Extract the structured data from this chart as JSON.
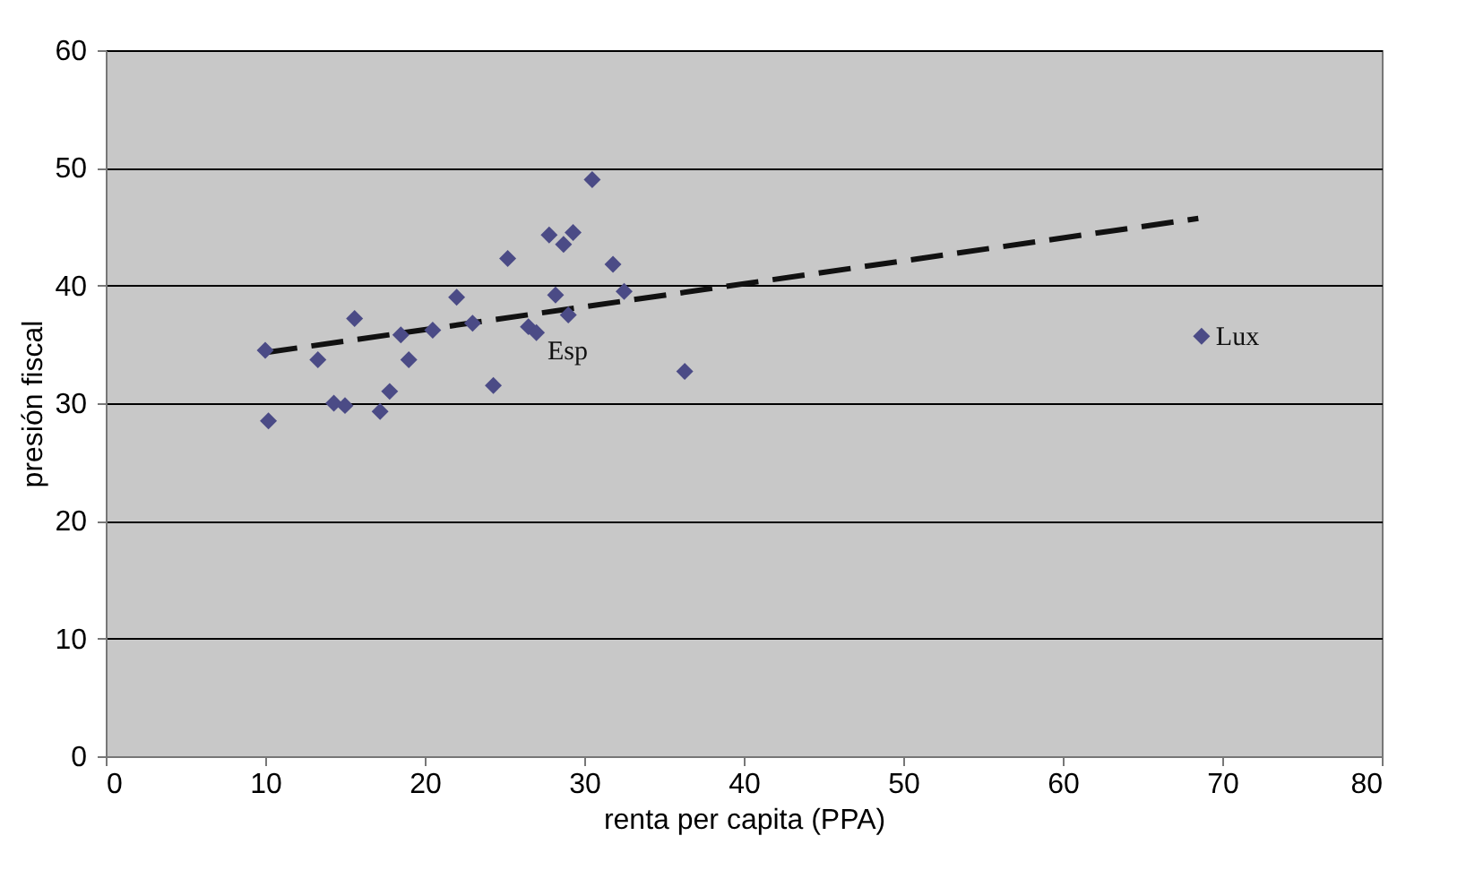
{
  "chart_data": {
    "type": "scatter",
    "xlabel": "renta per capita (PPA)",
    "ylabel": "presión fiscal",
    "xlim": [
      0,
      80
    ],
    "xticks": [
      0,
      10,
      20,
      30,
      40,
      50,
      60,
      70,
      80
    ],
    "ylim": [
      0,
      60
    ],
    "yticks": [
      0,
      10,
      20,
      30,
      40,
      50,
      60
    ],
    "grid": "y",
    "series": [
      {
        "color": "#4b4b86",
        "marker": "diamond",
        "x": [
          10,
          10.2,
          13.3,
          14.3,
          15,
          15.6,
          17.2,
          17.8,
          18.5,
          19,
          20.5,
          22,
          23,
          24.3,
          25.2,
          26.5,
          27,
          27.8,
          28.2,
          28.7,
          29,
          29.3,
          30.5,
          31.8,
          32.5,
          36.3,
          68.7
        ],
        "values": [
          34.5,
          28.5,
          33.7,
          30,
          29.8,
          37.2,
          29.3,
          31,
          35.8,
          33.7,
          36.2,
          39,
          36.8,
          31.5,
          42.3,
          36.5,
          36,
          44.3,
          39.2,
          43.5,
          37.5,
          44.5,
          49,
          41.8,
          39.5,
          32.7,
          35.7
        ]
      },
      {
        "type": "line",
        "color": "#111111",
        "line_style": "dashed",
        "marker": "none",
        "x": [
          10,
          68.5
        ],
        "values": [
          34.3,
          45.7
        ]
      }
    ],
    "annotations": [
      {
        "text": "Esp",
        "x": 26.8,
        "y": 36
      },
      {
        "text": "Lux",
        "x": 68.7,
        "y": 35.7
      }
    ]
  }
}
